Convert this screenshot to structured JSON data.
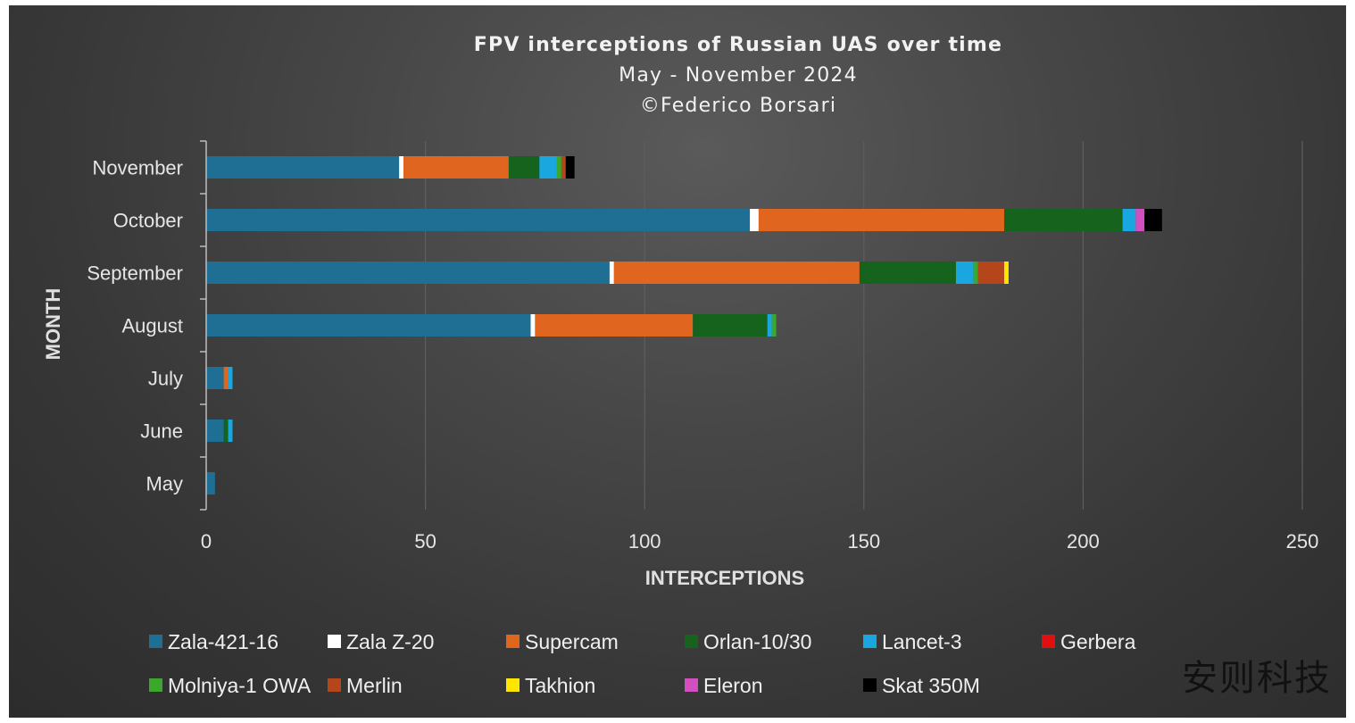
{
  "chart_data": {
    "type": "bar",
    "orientation": "horizontal",
    "stacked": true,
    "title": "FPV interceptions of Russian UAS over time",
    "subtitle": "May - November 2024",
    "credit": "©Federico Borsari",
    "xlabel": "INTERCEPTIONS",
    "ylabel": "MONTH",
    "xlim": [
      0,
      250
    ],
    "xticks": [
      0,
      50,
      100,
      150,
      200,
      250
    ],
    "grid": true,
    "legend_position": "bottom",
    "categories": [
      "May",
      "June",
      "July",
      "August",
      "September",
      "October",
      "November"
    ],
    "series": [
      {
        "name": "Zala-421-16",
        "color": "#1f6f95",
        "values": [
          2,
          4,
          4,
          74,
          92,
          124,
          44
        ]
      },
      {
        "name": "Zala Z-20",
        "color": "#ffffff",
        "values": [
          0,
          0,
          0,
          1,
          1,
          2,
          1
        ]
      },
      {
        "name": "Supercam",
        "color": "#e0661f",
        "values": [
          0,
          0,
          1,
          36,
          56,
          56,
          24
        ]
      },
      {
        "name": "Orlan-10/30",
        "color": "#16631e",
        "values": [
          0,
          1,
          0,
          17,
          22,
          27,
          7
        ]
      },
      {
        "name": "Lancet-3",
        "color": "#1aa7e0",
        "values": [
          0,
          1,
          1,
          1,
          4,
          3,
          4
        ]
      },
      {
        "name": "Gerbera",
        "color": "#e01010",
        "values": [
          0,
          0,
          0,
          0,
          0,
          0,
          0
        ]
      },
      {
        "name": "Molniya-1 OWA",
        "color": "#39a82c",
        "values": [
          0,
          0,
          0,
          1,
          1,
          0,
          1
        ]
      },
      {
        "name": "Merlin",
        "color": "#b5451b",
        "values": [
          0,
          0,
          0,
          0,
          6,
          0,
          1
        ]
      },
      {
        "name": "Takhion",
        "color": "#ffe600",
        "values": [
          0,
          0,
          0,
          0,
          1,
          0,
          0
        ]
      },
      {
        "name": "Eleron",
        "color": "#d24fc0",
        "values": [
          0,
          0,
          0,
          0,
          0,
          2,
          0
        ]
      },
      {
        "name": "Skat 350M",
        "color": "#000000",
        "values": [
          0,
          0,
          0,
          0,
          0,
          4,
          2
        ]
      }
    ]
  },
  "watermark": "安则科技"
}
